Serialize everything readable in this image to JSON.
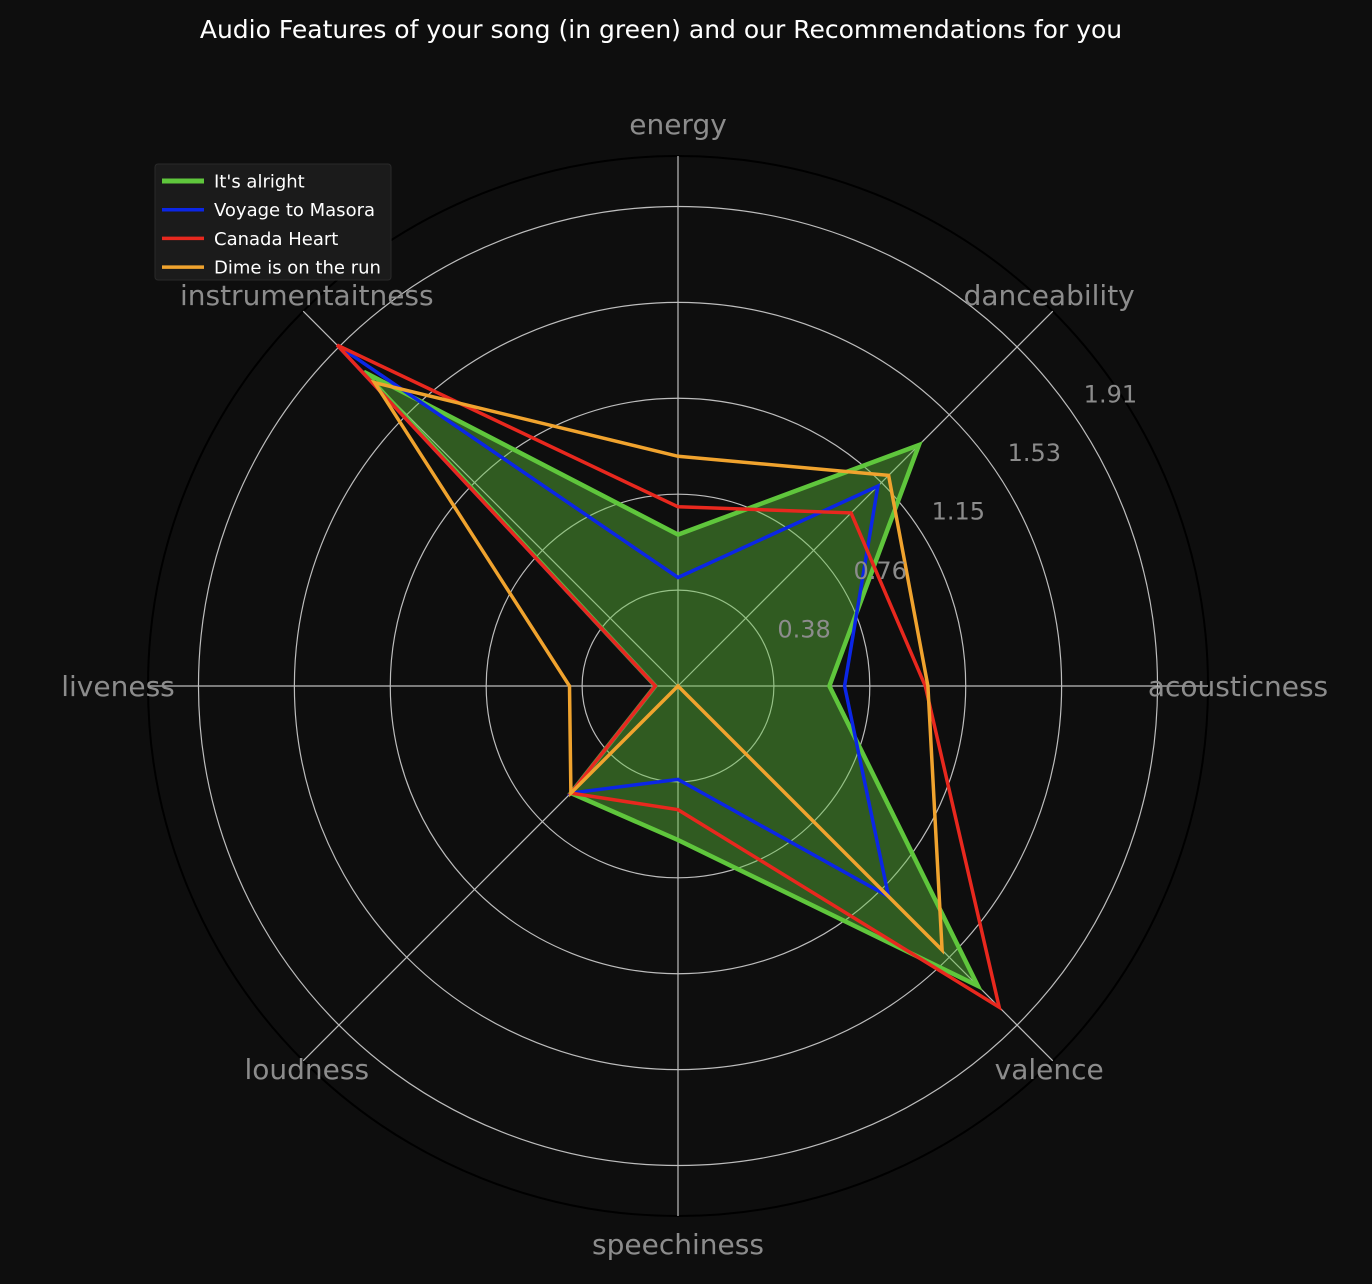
{
  "chart_data": {
    "type": "radar",
    "title": "Audio Features of your song (in green) and our Recommendations for you",
    "axes": [
      "energy",
      "danceability",
      "acousticness",
      "valence",
      "speechiness",
      "loudness",
      "liveness",
      "instrumentaitness"
    ],
    "radial_ticks": [
      "0.38",
      "0.76",
      "1.15",
      "1.53",
      "1.91"
    ],
    "radial_tick_values": [
      0.38,
      0.76,
      1.15,
      1.53,
      1.91
    ],
    "rmax": 2.1,
    "grid": true,
    "legend_position": "top-left",
    "series": [
      {
        "name": "It's alright",
        "color": "#5fc63c",
        "fill": true,
        "values": [
          0.6,
          1.35,
          0.6,
          1.68,
          0.61,
          0.6,
          0.09,
          1.76
        ]
      },
      {
        "name": "Voyage to Masora",
        "color": "#0b26e6",
        "fill": false,
        "values": [
          0.43,
          1.12,
          0.66,
          1.18,
          0.37,
          0.6,
          0.09,
          1.91
        ]
      },
      {
        "name": "Canada Heart",
        "color": "#e8281e",
        "fill": false,
        "values": [
          0.71,
          0.97,
          0.98,
          1.8,
          0.49,
          0.6,
          0.09,
          1.91
        ]
      },
      {
        "name": "Dime is on the run",
        "color": "#f0a32e",
        "fill": false,
        "values": [
          0.91,
          1.18,
          0.99,
          1.48,
          0.0,
          0.6,
          0.43,
          1.7
        ]
      }
    ]
  }
}
